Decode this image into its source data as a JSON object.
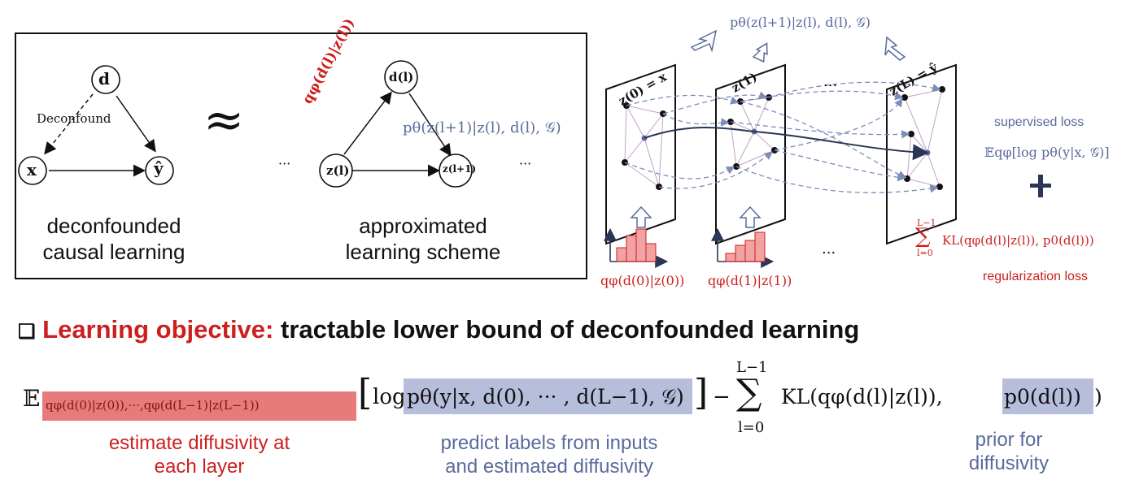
{
  "left_panel": {
    "dag": {
      "node_d": "d",
      "node_x": "x",
      "node_y": "ŷ",
      "edge_label": "Deconfound",
      "caption_line1": "deconfounded",
      "caption_line2": "causal learning"
    },
    "approx_symbol": "≈",
    "ellipsis_left": "···",
    "ellipsis_right": "···",
    "approx": {
      "node_d": "d(l)",
      "node_z": "z(l)",
      "node_z_next": "z(l+1)",
      "q_label": "qφ(d(l)|z(l))",
      "p_label": "pθ(z(l+1)|z(l), d(l), 𝒢)",
      "caption_line1": "approximated",
      "caption_line2": "learning scheme"
    }
  },
  "right_panel": {
    "top_formula": "pθ(z(l+1)|z(l), d(l), 𝒢)",
    "layer0": "z(0) = x",
    "layer1": "z(1)",
    "layerL": "z(L) = ŷ",
    "dots_top": "...",
    "dots_bottom": "...",
    "hist0_label": "qφ(d(0)|z(0))",
    "hist1_label": "qφ(d(1)|z(1))",
    "supervised_title": "supervised loss",
    "supervised_formula": "𝔼qφ[log pθ(y|x, 𝒢)]",
    "plus": "+",
    "reg_formula": "KL(qφ(d(l)|z(l)), p0(d(l)))",
    "reg_sum_top": "L−1",
    "reg_sum_bottom": "l=0",
    "reg_title": "regularization loss"
  },
  "objective": {
    "checkbox": "❑",
    "label": "Learning objective:",
    "text": "tractable lower bound of deconfounded learning"
  },
  "equation": {
    "E": "𝔼",
    "subscript": "qφ(d(0)|z(0)),···,qφ(d(L−1)|z(L−1))",
    "log": "log",
    "p_term": "pθ(y|x, d(0), ··· , d(L−1), 𝒢)",
    "minus": "−",
    "sum_top": "L−1",
    "sum_bottom": "l=0",
    "kl_prefix": "KL(qφ(d(l)|z(l)),",
    "prior": "p0(d(l))",
    "close": ")"
  },
  "annotations": {
    "est_line1": "estimate diffusivity at",
    "est_line2": "each layer",
    "pred_line1": "predict labels from inputs",
    "pred_line2": "and estimated diffusivity",
    "prior_line1": "prior for",
    "prior_line2": "diffusivity"
  }
}
